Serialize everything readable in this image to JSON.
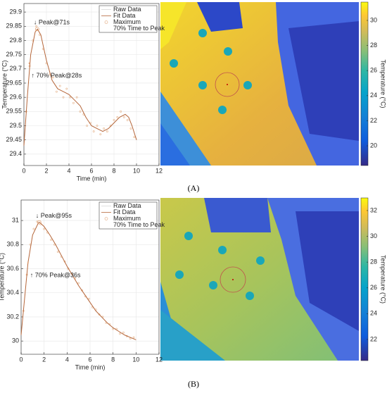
{
  "panel_labels": [
    "(A)",
    "(B)"
  ],
  "chart_data": [
    {
      "type": "line",
      "xlabel": "Time (min)",
      "ylabel": "Temperature (°C)",
      "xlim": [
        0,
        12
      ],
      "xticks": [
        0,
        2,
        4,
        6,
        8,
        10,
        12
      ],
      "ylim": [
        29.36,
        29.93
      ],
      "yticks": [
        29.4,
        29.45,
        29.5,
        29.55,
        29.6,
        29.65,
        29.7,
        29.75,
        29.8,
        29.85,
        29.9
      ],
      "grid": true,
      "legend": "upper right",
      "annotations": [
        "↓ Peak@71s",
        "↑ 70% Peak@28s"
      ],
      "series": [
        {
          "name": "Raw Data",
          "color": "#e6b48c",
          "marker": "dot",
          "x": [
            0.2,
            0.5,
            0.8,
            1.1,
            1.4,
            1.7,
            2.0,
            2.3,
            2.6,
            2.9,
            3.2,
            3.5,
            3.8,
            4.1,
            4.4,
            4.7,
            5.0,
            5.3,
            5.6,
            5.9,
            6.2,
            6.5,
            6.8,
            7.1,
            7.4,
            7.7,
            8.0,
            8.3,
            8.6,
            8.9,
            9.2,
            9.5,
            9.8
          ],
          "values": [
            29.55,
            29.71,
            29.8,
            29.85,
            29.82,
            29.77,
            29.72,
            29.68,
            29.67,
            29.62,
            29.64,
            29.6,
            29.63,
            29.6,
            29.58,
            29.6,
            29.55,
            29.54,
            29.5,
            29.51,
            29.48,
            29.5,
            29.47,
            29.49,
            29.48,
            29.5,
            29.52,
            29.53,
            29.55,
            29.53,
            29.52,
            29.49,
            29.46
          ]
        },
        {
          "name": "Fit Data",
          "color": "#b5663a",
          "marker": "line",
          "x": [
            0,
            0.3,
            0.6,
            1.0,
            1.2,
            1.5,
            2.0,
            2.5,
            3,
            3.5,
            4,
            4.5,
            5,
            5.5,
            6,
            6.5,
            7,
            7.5,
            8,
            8.5,
            9,
            9.3,
            9.6,
            10
          ],
          "values": [
            29.43,
            29.6,
            29.75,
            29.83,
            29.84,
            29.82,
            29.73,
            29.66,
            29.63,
            29.62,
            29.61,
            29.59,
            29.57,
            29.53,
            29.5,
            29.49,
            29.48,
            29.49,
            29.51,
            29.53,
            29.54,
            29.53,
            29.5,
            29.45
          ]
        },
        {
          "name": "Maximum",
          "color": "#e0a070",
          "marker": "circle",
          "x": [
            1.18
          ],
          "values": [
            29.84
          ]
        },
        {
          "name": "70% Time to Peak",
          "color": "#e0a070",
          "marker": "none",
          "x": [
            0.47
          ],
          "values": [
            29.72
          ]
        }
      ]
    },
    {
      "type": "colorbar",
      "ylabel": "Temperature (°C)",
      "ylim": [
        18.43,
        31.46
      ],
      "yticks": [
        20,
        22,
        24,
        26,
        28,
        30
      ]
    },
    {
      "type": "line",
      "xlabel": "Time (min)",
      "ylabel": "Temperature (°C)",
      "xlim": [
        0,
        12
      ],
      "xticks": [
        0,
        2,
        4,
        6,
        8,
        10,
        12
      ],
      "ylim": [
        29.89,
        31.17
      ],
      "yticks": [
        30,
        30.2,
        30.4,
        30.6,
        30.8,
        31
      ],
      "grid": true,
      "legend": "upper right",
      "annotations": [
        "↓ Peak@95s",
        "↑ 70% Peak@36s"
      ],
      "series": [
        {
          "name": "Raw Data",
          "color": "#e6b48c",
          "marker": "dot",
          "x": [
            0.2,
            0.5,
            0.8,
            1.1,
            1.4,
            1.7,
            2.0,
            2.3,
            2.6,
            2.9,
            3.2,
            3.5,
            3.8,
            4.1,
            4.4,
            4.7,
            5.0,
            5.3,
            5.6,
            5.9,
            6.2,
            6.5,
            6.8,
            7.1,
            7.4,
            7.7,
            8.0,
            8.3,
            8.6,
            8.9,
            9.2,
            9.5,
            9.8
          ],
          "values": [
            30.25,
            30.55,
            30.8,
            30.93,
            30.99,
            30.97,
            30.93,
            30.9,
            30.84,
            30.8,
            30.74,
            30.7,
            30.66,
            30.6,
            30.56,
            30.52,
            30.48,
            30.42,
            30.37,
            30.35,
            30.28,
            30.26,
            30.22,
            30.2,
            30.15,
            30.14,
            30.1,
            30.1,
            30.06,
            30.07,
            30.04,
            30.02,
            30.03
          ]
        },
        {
          "name": "Fit Data",
          "color": "#b5663a",
          "marker": "line",
          "x": [
            0,
            0.3,
            0.6,
            1.0,
            1.5,
            1.6,
            2,
            2.5,
            3,
            3.5,
            4,
            4.5,
            5,
            5.5,
            6,
            6.5,
            7,
            7.5,
            8,
            8.5,
            9,
            9.5,
            10
          ],
          "values": [
            30.05,
            30.35,
            30.65,
            30.88,
            30.98,
            30.985,
            30.95,
            30.88,
            30.8,
            30.71,
            30.62,
            30.54,
            30.46,
            30.39,
            30.32,
            30.25,
            30.2,
            30.15,
            30.11,
            30.08,
            30.05,
            30.03,
            30.01
          ]
        },
        {
          "name": "Maximum",
          "color": "#e0a070",
          "marker": "circle",
          "x": [
            1.58
          ],
          "values": [
            30.985
          ]
        },
        {
          "name": "70% Time to Peak",
          "color": "#e0a070",
          "marker": "none",
          "x": [
            0.6
          ],
          "values": [
            30.65
          ]
        }
      ]
    },
    {
      "type": "colorbar",
      "ylabel": "Temperature (°C)",
      "ylim": [
        20.36,
        32.98
      ],
      "yticks": [
        22,
        24,
        26,
        28,
        30,
        32
      ]
    }
  ]
}
